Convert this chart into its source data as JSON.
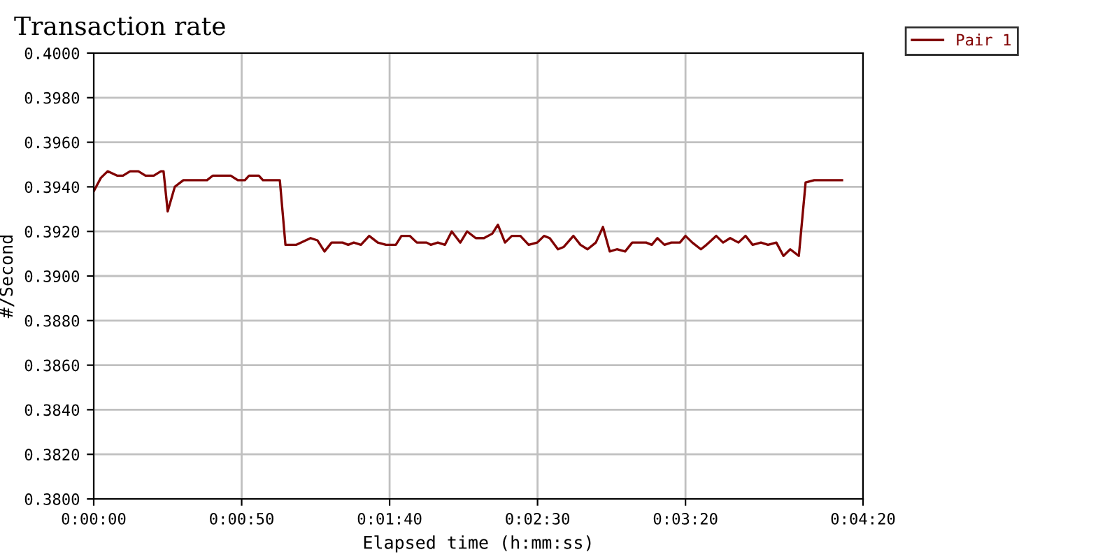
{
  "chart_data": {
    "type": "line",
    "title": "Transaction rate",
    "xlabel": "Elapsed time (h:mm:ss)",
    "ylabel": "#/Second",
    "series": [
      {
        "name": "Pair 1",
        "color": "#800000",
        "x": [
          0,
          2.4,
          4.7,
          8.0,
          9.9,
          12.3,
          15.1,
          17.5,
          20.3,
          22.7,
          23.6,
          25.0,
          27.4,
          30.3,
          38.3,
          40.2,
          46.3,
          48.7,
          51.1,
          52.5,
          55.8,
          57.2,
          62.9,
          64.8,
          68.5,
          73.3,
          75.6,
          78.0,
          80.4,
          84.1,
          86.0,
          87.9,
          90.3,
          93.1,
          96.0,
          98.8,
          102.1,
          104.0,
          106.8,
          109.2,
          112.5,
          113.9,
          116.3,
          118.7,
          121.0,
          123.9,
          126.2,
          129.1,
          131.9,
          134.7,
          136.6,
          139.0,
          141.3,
          144.2,
          147.0,
          149.9,
          152.2,
          154.1,
          156.9,
          158.8,
          162.1,
          164.5,
          166.9,
          169.7,
          172.1,
          174.4,
          176.8,
          179.6,
          182.0,
          186.7,
          188.6,
          190.5,
          192.9,
          195.2,
          198.1,
          200.0,
          202.3,
          205.2,
          207.1,
          210.4,
          212.7,
          215.1,
          217.9,
          220.3,
          222.7,
          225.5,
          227.9,
          230.7,
          233.1,
          235.4,
          238.3,
          240.6,
          243.5,
          252.9
        ],
        "values": [
          0.3938,
          0.3944,
          0.3947,
          0.3945,
          0.3945,
          0.3947,
          0.3947,
          0.3945,
          0.3945,
          0.3947,
          0.3947,
          0.3929,
          0.394,
          0.3943,
          0.3943,
          0.3945,
          0.3945,
          0.3943,
          0.3943,
          0.3945,
          0.3945,
          0.3943,
          0.3943,
          0.3914,
          0.3914,
          0.3917,
          0.3916,
          0.3911,
          0.3915,
          0.3915,
          0.3914,
          0.3915,
          0.3914,
          0.3918,
          0.3915,
          0.3914,
          0.3914,
          0.3918,
          0.3918,
          0.3915,
          0.3915,
          0.3914,
          0.3915,
          0.3914,
          0.392,
          0.3915,
          0.392,
          0.3917,
          0.3917,
          0.3919,
          0.3923,
          0.3915,
          0.3918,
          0.3918,
          0.3914,
          0.3915,
          0.3918,
          0.3917,
          0.3912,
          0.3913,
          0.3918,
          0.3914,
          0.3912,
          0.3915,
          0.3922,
          0.3911,
          0.3912,
          0.3911,
          0.3915,
          0.3915,
          0.3914,
          0.3917,
          0.3914,
          0.3915,
          0.3915,
          0.3918,
          0.3915,
          0.3912,
          0.3914,
          0.3918,
          0.3915,
          0.3917,
          0.3915,
          0.3918,
          0.3914,
          0.3915,
          0.3914,
          0.3915,
          0.3909,
          0.3912,
          0.3909,
          0.3942,
          0.3943,
          0.3943
        ]
      }
    ],
    "xlim": [
      0,
      260
    ],
    "xticks": [
      {
        "value": 0,
        "label": "0:00:00"
      },
      {
        "value": 50,
        "label": "0:00:50"
      },
      {
        "value": 100,
        "label": "0:01:40"
      },
      {
        "value": 150,
        "label": "0:02:30"
      },
      {
        "value": 200,
        "label": "0:03:20"
      },
      {
        "value": 260,
        "label": "0:04:20"
      }
    ],
    "ylim": [
      0.38,
      0.4
    ],
    "yticks": [
      {
        "value": 0.38,
        "label": "0.3800"
      },
      {
        "value": 0.382,
        "label": "0.3820"
      },
      {
        "value": 0.384,
        "label": "0.3840"
      },
      {
        "value": 0.386,
        "label": "0.3860"
      },
      {
        "value": 0.388,
        "label": "0.3880"
      },
      {
        "value": 0.39,
        "label": "0.3900"
      },
      {
        "value": 0.392,
        "label": "0.3920"
      },
      {
        "value": 0.394,
        "label": "0.3940"
      },
      {
        "value": 0.396,
        "label": "0.3960"
      },
      {
        "value": 0.398,
        "label": "0.3980"
      },
      {
        "value": 0.4,
        "label": "0.4000"
      }
    ],
    "grid": true,
    "legend": "right",
    "marker": "none",
    "line_style": "solid"
  }
}
